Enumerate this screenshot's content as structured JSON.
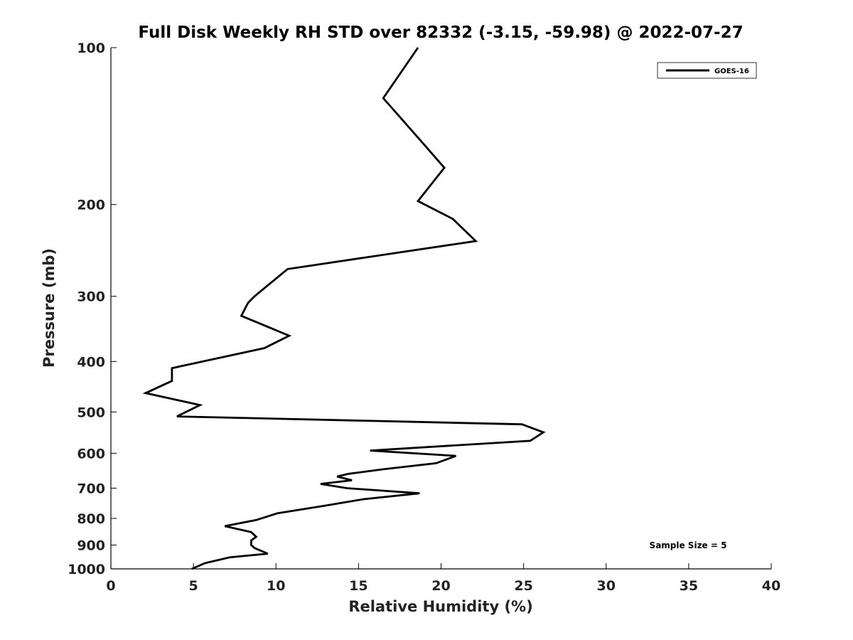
{
  "chart_data": {
    "type": "line",
    "title": "Full Disk Weekly RH STD over 82332 (-3.15, -59.98) @ 2022-07-27",
    "xlabel": "Relative Humidity (%)",
    "ylabel": "Pressure (mb)",
    "xlim": [
      0,
      40
    ],
    "ylim": [
      100,
      1000
    ],
    "y_scale": "log",
    "y_reversed": true,
    "x_ticks": [
      0,
      5,
      10,
      15,
      20,
      25,
      30,
      35,
      40
    ],
    "y_ticks": [
      100,
      200,
      300,
      400,
      500,
      600,
      700,
      800,
      900,
      1000
    ],
    "grid": false,
    "legend_position": "top-right",
    "series": [
      {
        "name": "GOES-16",
        "color": "#000000",
        "points": [
          [
            18.6,
            100
          ],
          [
            16.5,
            125
          ],
          [
            18.7,
            150
          ],
          [
            20.2,
            170
          ],
          [
            18.6,
            197
          ],
          [
            20.7,
            213
          ],
          [
            22.1,
            235
          ],
          [
            10.7,
            266
          ],
          [
            8.7,
            300
          ],
          [
            8.3,
            309
          ],
          [
            7.9,
            327
          ],
          [
            10.8,
            357
          ],
          [
            9.3,
            377
          ],
          [
            3.7,
            412
          ],
          [
            3.7,
            436
          ],
          [
            2.1,
            460
          ],
          [
            5.4,
            485
          ],
          [
            4.0,
            510
          ],
          [
            24.9,
            528
          ],
          [
            26.2,
            547
          ],
          [
            25.4,
            568
          ],
          [
            15.7,
            593
          ],
          [
            20.9,
            607
          ],
          [
            19.7,
            627
          ],
          [
            16.5,
            644
          ],
          [
            14.4,
            657
          ],
          [
            13.7,
            665
          ],
          [
            14.6,
            676
          ],
          [
            12.7,
            687
          ],
          [
            14.3,
            700
          ],
          [
            18.7,
            716
          ],
          [
            15.3,
            735
          ],
          [
            12.9,
            757
          ],
          [
            10.1,
            782
          ],
          [
            8.8,
            806
          ],
          [
            6.9,
            828
          ],
          [
            8.5,
            850
          ],
          [
            8.8,
            868
          ],
          [
            8.5,
            882
          ],
          [
            8.5,
            900
          ],
          [
            8.7,
            912
          ],
          [
            9.5,
            935
          ],
          [
            7.2,
            950
          ],
          [
            5.7,
            975
          ],
          [
            4.9,
            1000
          ]
        ]
      }
    ],
    "annotations": [
      {
        "text": "Sample Size = 5",
        "position": "lower-right"
      }
    ]
  }
}
